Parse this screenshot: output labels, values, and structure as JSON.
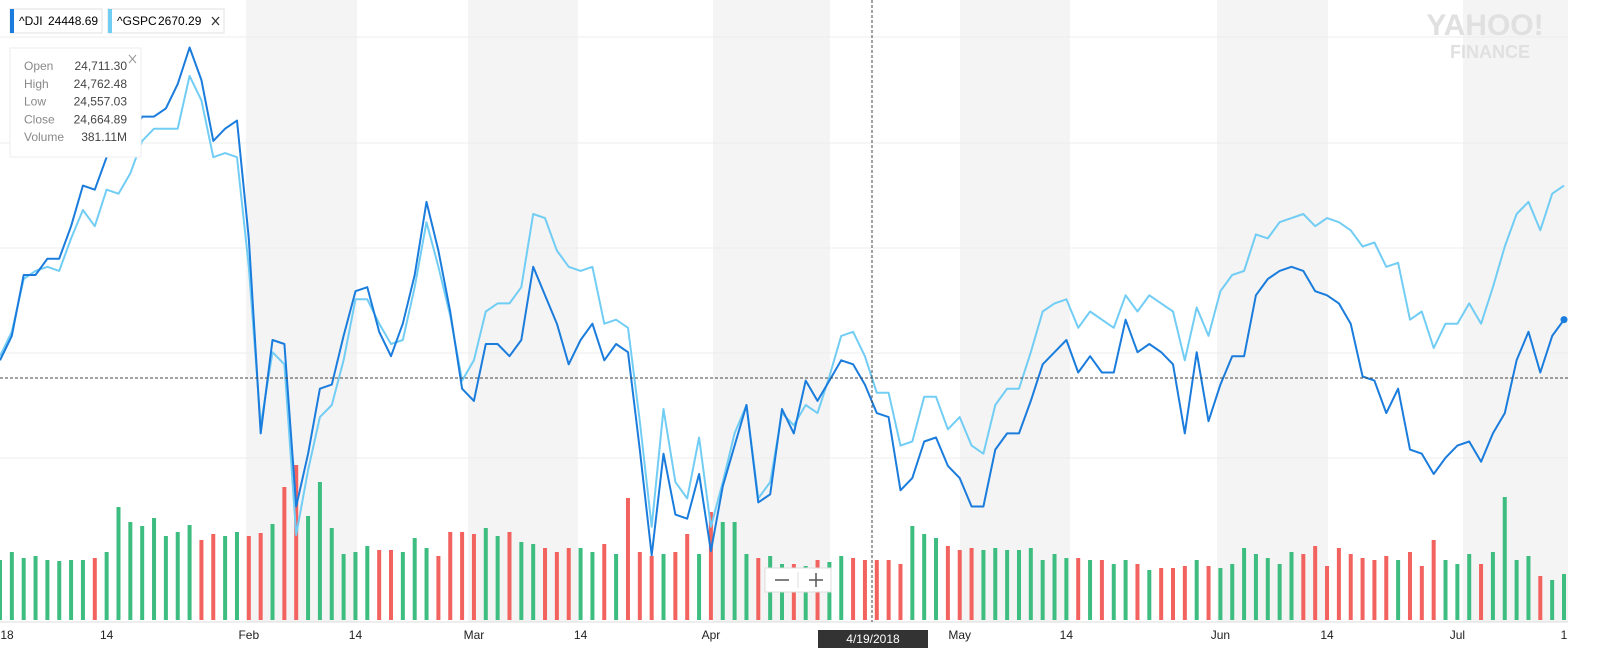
{
  "chart_data": {
    "type": "line",
    "categories": [
      "18",
      null,
      null,
      null,
      null,
      null,
      null,
      null,
      null,
      "14",
      null,
      null,
      null,
      null,
      null,
      null,
      null,
      null,
      null,
      null,
      null,
      "Feb",
      null,
      null,
      null,
      null,
      null,
      null,
      null,
      null,
      "14",
      null,
      null,
      null,
      null,
      null,
      null,
      null,
      null,
      null,
      "Mar",
      null,
      null,
      null,
      null,
      null,
      null,
      null,
      null,
      "14",
      null,
      null,
      null,
      null,
      null,
      null,
      null,
      null,
      null,
      null,
      "Apr",
      null,
      null,
      null,
      null,
      null,
      null,
      null,
      null,
      null,
      null,
      null,
      null,
      null,
      null,
      null,
      null,
      null,
      null,
      null,
      null,
      "May",
      null,
      null,
      null,
      null,
      null,
      null,
      null,
      null,
      "14",
      null,
      null,
      null,
      null,
      null,
      null,
      null,
      null,
      null,
      null,
      null,
      null,
      "Jun",
      null,
      null,
      null,
      null,
      null,
      null,
      null,
      null,
      "14",
      null,
      null,
      null,
      null,
      null,
      null,
      null,
      null,
      null,
      null,
      "Jul",
      null,
      null,
      null,
      null,
      null,
      null,
      null,
      null,
      "1"
    ],
    "series": [
      {
        "name": "^DJI",
        "last": 24448.69,
        "color": "#1a7cdc",
        "values": [
          0.0,
          0.6,
          2.1,
          2.1,
          2.5,
          2.5,
          3.3,
          4.3,
          4.2,
          5.0,
          5.4,
          5.5,
          6.0,
          6.0,
          6.2,
          6.8,
          7.7,
          6.9,
          5.4,
          5.7,
          5.9,
          3.0,
          -1.8,
          0.5,
          0.4,
          -3.6,
          -2.3,
          -0.7,
          -0.6,
          0.6,
          1.7,
          1.8,
          0.7,
          0.1,
          0.9,
          2.1,
          3.9,
          2.7,
          1.2,
          -0.7,
          -1.0,
          0.4,
          0.4,
          0.1,
          0.5,
          2.3,
          1.6,
          0.9,
          -0.1,
          0.5,
          0.9,
          0.0,
          0.4,
          0.2,
          -2.2,
          -4.8,
          -2.3,
          -3.8,
          -3.9,
          -2.8,
          -4.7,
          -3.1,
          -2.1,
          -1.1,
          -3.5,
          -3.3,
          -1.2,
          -1.8,
          -0.5,
          -1.0,
          -0.5,
          0.0,
          -0.1,
          -0.6,
          -1.3,
          -1.4,
          -3.2,
          -2.9,
          -2.0,
          -1.9,
          -2.6,
          -2.9,
          -3.6,
          -3.6,
          -2.2,
          -1.8,
          -1.8,
          -1.0,
          -0.1,
          0.2,
          0.5,
          -0.3,
          0.1,
          -0.3,
          -0.3,
          1.0,
          0.2,
          0.4,
          0.2,
          -0.1,
          -1.8,
          0.2,
          -1.5,
          -0.6,
          0.1,
          0.1,
          1.6,
          2.0,
          2.2,
          2.3,
          2.2,
          1.7,
          1.6,
          1.4,
          0.9,
          -0.4,
          -0.5,
          -1.3,
          -0.7,
          -2.2,
          -2.3,
          -2.8,
          -2.4,
          -2.1,
          -2.0,
          -2.5,
          -1.8,
          -1.3,
          0.0,
          0.7,
          -0.3,
          0.6,
          1.0
        ]
      },
      {
        "name": "^GSPC",
        "last": 2670.29,
        "color": "#72cdf4",
        "values": [
          0.1,
          0.7,
          2.0,
          2.2,
          2.3,
          2.2,
          3.0,
          3.7,
          3.3,
          4.2,
          4.1,
          4.6,
          5.4,
          5.7,
          5.7,
          5.7,
          7.0,
          6.4,
          5.0,
          5.1,
          5.0,
          2.3,
          -1.6,
          0.2,
          -0.1,
          -4.3,
          -2.7,
          -1.4,
          -1.1,
          0.0,
          1.5,
          1.5,
          0.9,
          0.4,
          0.5,
          1.8,
          3.4,
          2.3,
          1.1,
          -0.5,
          0.0,
          1.2,
          1.4,
          1.4,
          1.8,
          3.6,
          3.5,
          2.7,
          2.3,
          2.2,
          2.3,
          0.9,
          1.0,
          0.8,
          -1.5,
          -4.1,
          -1.2,
          -3.0,
          -3.4,
          -1.9,
          -4.1,
          -3.0,
          -1.8,
          -1.1,
          -3.4,
          -3.0,
          -1.3,
          -1.6,
          -1.1,
          -1.3,
          -0.4,
          0.6,
          0.7,
          0.1,
          -0.8,
          -0.8,
          -2.1,
          -2.0,
          -0.9,
          -0.9,
          -1.7,
          -1.4,
          -2.1,
          -2.3,
          -1.1,
          -0.7,
          -0.7,
          0.2,
          1.2,
          1.4,
          1.5,
          0.8,
          1.2,
          1.0,
          0.8,
          1.6,
          1.2,
          1.6,
          1.4,
          1.2,
          0.0,
          1.3,
          0.6,
          1.7,
          2.1,
          2.2,
          3.1,
          3.0,
          3.4,
          3.5,
          3.6,
          3.3,
          3.5,
          3.4,
          3.2,
          2.8,
          2.9,
          2.3,
          2.4,
          1.0,
          1.2,
          0.3,
          0.9,
          0.9,
          1.4,
          0.9,
          1.8,
          2.8,
          3.6,
          3.9,
          3.2,
          4.1,
          4.3
        ]
      }
    ],
    "volume": [
      300,
      340,
      310,
      320,
      300,
      295,
      300,
      300,
      310,
      340,
      565,
      490,
      470,
      510,
      420,
      440,
      475,
      400,
      430,
      420,
      440,
      420,
      435,
      480,
      665,
      775,
      520,
      690,
      460,
      330,
      340,
      370,
      350,
      350,
      340,
      410,
      360,
      320,
      440,
      440,
      430,
      460,
      420,
      440,
      390,
      380,
      360,
      340,
      360,
      360,
      340,
      380,
      330,
      610,
      340,
      320,
      330,
      340,
      430,
      330,
      540,
      490,
      490,
      330,
      310,
      320,
      280,
      280,
      270,
      300,
      290,
      320,
      310,
      300,
      300,
      300,
      280,
      470,
      430,
      410,
      370,
      350,
      360,
      350,
      360,
      350,
      350,
      360,
      300,
      330,
      310,
      310,
      300,
      300,
      280,
      300,
      280,
      250,
      260,
      260,
      270,
      300,
      270,
      260,
      280,
      360,
      330,
      310,
      280,
      340,
      330,
      370,
      270,
      360,
      330,
      310,
      300,
      320,
      300,
      340,
      270,
      400,
      300,
      280,
      330,
      280,
      340,
      615,
      300,
      320,
      220,
      200,
      230
    ],
    "up_color": "#3dbd7f",
    "down_color": "#f2625f",
    "ylim": [
      -6,
      8.5
    ],
    "volume_ylim": [
      0,
      1000
    ],
    "crosshair_date": "4/19/2018",
    "tooltip": [
      [
        "Open",
        "24,711.30"
      ],
      [
        "High",
        "24,762.48"
      ],
      [
        "Low",
        "24,557.03"
      ],
      [
        "Close",
        "24,664.89"
      ],
      [
        "Volume",
        "381.11M"
      ]
    ],
    "watermark": [
      "YAHOO!",
      "FINANCE"
    ]
  }
}
